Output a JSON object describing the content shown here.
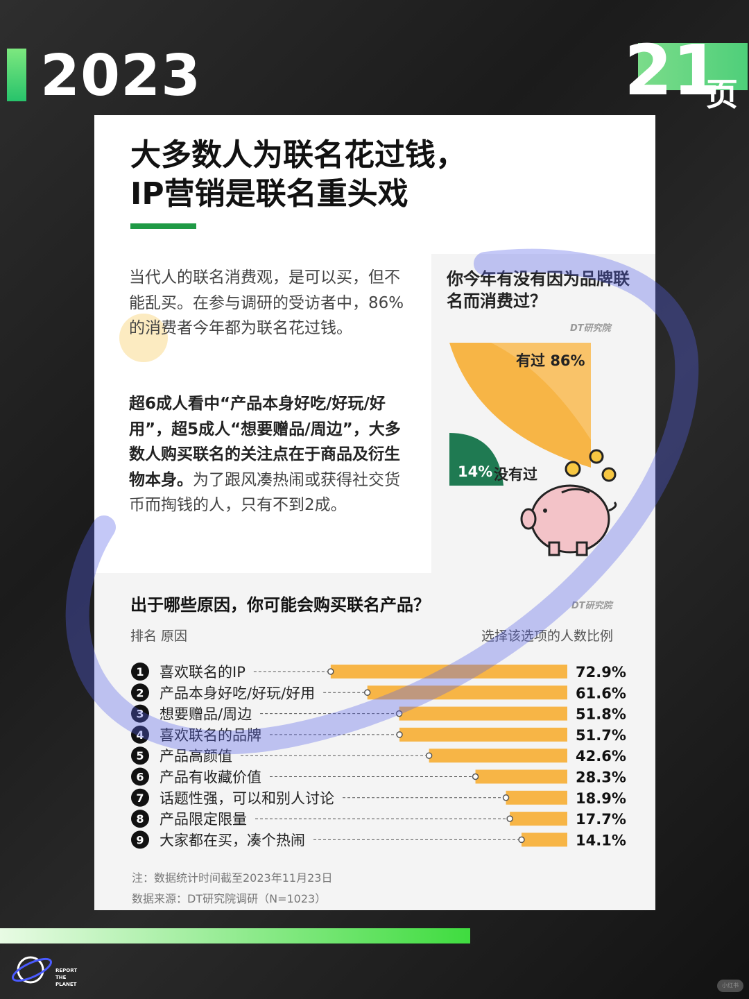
{
  "header": {
    "year": "2023",
    "page_number": "21",
    "page_unit": "页"
  },
  "article": {
    "title_line1": "大多数人为联名花过钱，",
    "title_line2": "IP营销是联名重头戏",
    "para1": "当代人的联名消费观，是可以买，但不能乱买。在参与调研的受访者中，86%的消费者今年都为联名花过钱。",
    "para2_bold": "超6成人看中“产品本身好吃/好玩/好用”，超5成人“想要赠品/周边”，大多数人购买联名的关注点在于商品及衍生物本身。",
    "para2_rest": "为了跟风凑热闹或获得社交货币而掏钱的人，只有不到2成。"
  },
  "pie_panel": {
    "question": "你今年有没有因为品牌联名而消费过？",
    "source_logo": "DT研究院",
    "chart_data": {
      "type": "pie",
      "slices": [
        {
          "label": "有过",
          "value": 86,
          "value_label": "86%",
          "color": "#f7b546"
        },
        {
          "label": "没有过",
          "value": 14,
          "value_label": "14%",
          "color": "#1f7a52"
        }
      ]
    }
  },
  "bar_panel": {
    "title": "出于哪些原因，你可能会购买联名产品？",
    "source_logo": "DT研究院",
    "header_left": "排名 原因",
    "header_right": "选择该选项的人数比例",
    "chart_data": {
      "type": "bar",
      "orientation": "horizontal",
      "categories": [
        "喜欢联名的IP",
        "产品本身好吃/好玩/好用",
        "想要赠品/周边",
        "喜欢联名的品牌",
        "产品高颜值",
        "产品有收藏价值",
        "话题性强，可以和别人讨论",
        "产品限定限量",
        "大家都在买，凑个热闹"
      ],
      "ranks": [
        "1",
        "2",
        "3",
        "4",
        "5",
        "6",
        "7",
        "8",
        "9"
      ],
      "values": [
        72.9,
        61.6,
        51.8,
        51.7,
        42.6,
        28.3,
        18.9,
        17.7,
        14.1
      ],
      "value_labels": [
        "72.9%",
        "61.6%",
        "51.8%",
        "51.7%",
        "42.6%",
        "28.3%",
        "18.9%",
        "17.7%",
        "14.1%"
      ],
      "xlim": [
        0,
        100
      ],
      "bar_color": "#f7b546"
    },
    "note1": "注：数据统计时间截至2023年11月23日",
    "note2": "数据来源：DT研究院调研（N=1023）"
  },
  "footer": {
    "brand_line1": "REPORT",
    "brand_line2": "THE",
    "brand_line3": "PLANET",
    "watermark": "小红书"
  }
}
